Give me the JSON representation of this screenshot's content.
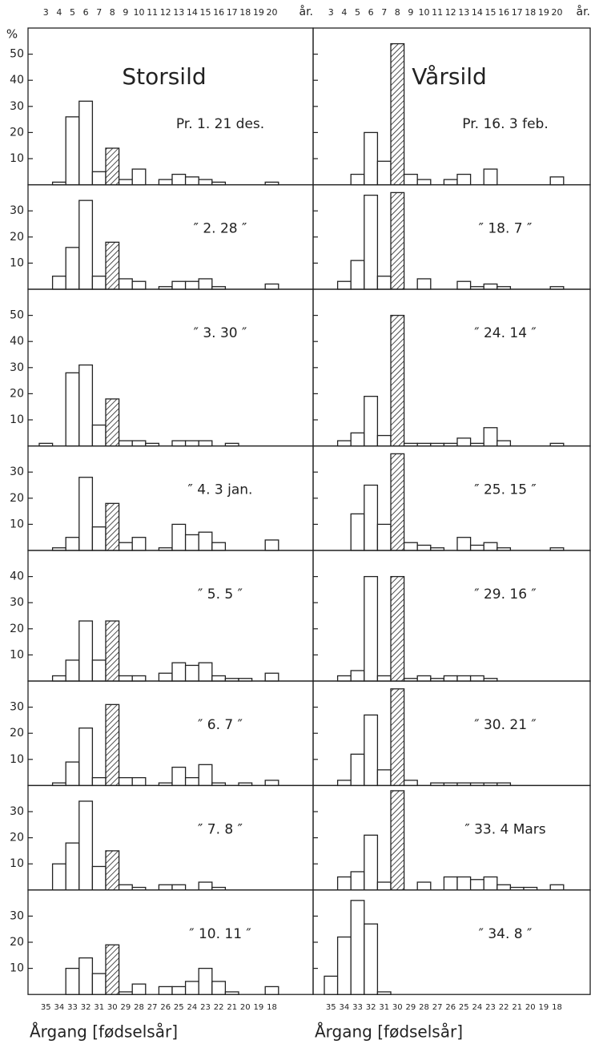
{
  "chart_data": [
    {
      "type": "bar",
      "title": "Storsild",
      "ylabel": "%",
      "tick_labels": true,
      "hatched": "8",
      "color": "#ffffff",
      "edge_color": "#222222",
      "categories": [
        "3",
        "4",
        "5",
        "6",
        "7",
        "8",
        "9",
        "10",
        "11",
        "12",
        "13",
        "14",
        "15",
        "16",
        "17",
        "18",
        "19",
        "20"
      ],
      "age_unit": "år.",
      "year_classes": [
        "35",
        "34",
        "33",
        "32",
        "31",
        "30",
        "29",
        "28",
        "27",
        "26",
        "25",
        "24",
        "23",
        "22",
        "21",
        "20",
        "19",
        "18"
      ],
      "xlabel": "Årgang [fødselsår]",
      "panels": [
        {
          "annotation": "Pr. 1.   21 des.",
          "ylim": [
            0,
            60
          ],
          "yticks": [
            10,
            20,
            30,
            40,
            50
          ],
          "values": [
            0,
            1,
            26,
            32,
            5,
            14,
            2,
            6,
            0,
            2,
            4,
            3,
            2,
            1,
            0,
            0,
            0,
            1
          ]
        },
        {
          "annotation": "″   2.   28   ″",
          "ylim": [
            0,
            40
          ],
          "yticks": [
            10,
            20,
            30
          ],
          "values": [
            0,
            5,
            16,
            34,
            5,
            18,
            4,
            3,
            0,
            1,
            3,
            3,
            4,
            1,
            0,
            0,
            0,
            2
          ]
        },
        {
          "annotation": "″   3.   30   ″",
          "ylim": [
            0,
            60
          ],
          "yticks": [
            10,
            20,
            30,
            40,
            50
          ],
          "values": [
            1,
            0,
            28,
            31,
            8,
            18,
            2,
            2,
            1,
            0,
            2,
            2,
            2,
            0,
            1,
            0,
            0,
            0
          ]
        },
        {
          "annotation": "″   4.   3 jan.",
          "ylim": [
            0,
            40
          ],
          "yticks": [
            10,
            20,
            30
          ],
          "values": [
            0,
            1,
            5,
            28,
            9,
            18,
            3,
            5,
            0,
            1,
            10,
            6,
            7,
            3,
            0,
            0,
            0,
            4
          ]
        },
        {
          "annotation": "″   5.   5   ″",
          "ylim": [
            0,
            50
          ],
          "yticks": [
            10,
            20,
            30,
            40
          ],
          "values": [
            0,
            2,
            8,
            23,
            8,
            23,
            2,
            2,
            0,
            3,
            7,
            6,
            7,
            2,
            1,
            1,
            0,
            3
          ]
        },
        {
          "annotation": "″   6.   7   ″",
          "ylim": [
            0,
            40
          ],
          "yticks": [
            10,
            20,
            30
          ],
          "values": [
            0,
            1,
            9,
            22,
            3,
            31,
            3,
            3,
            0,
            1,
            7,
            3,
            8,
            1,
            0,
            1,
            0,
            2
          ]
        },
        {
          "annotation": "″   7.   8   ″",
          "ylim": [
            0,
            40
          ],
          "yticks": [
            10,
            20,
            30
          ],
          "values": [
            0,
            10,
            18,
            34,
            9,
            15,
            2,
            1,
            0,
            2,
            2,
            0,
            3,
            1,
            0,
            0,
            0,
            0
          ]
        },
        {
          "annotation": "″   10.   11   ″",
          "ylim": [
            0,
            40
          ],
          "yticks": [
            10,
            20,
            30
          ],
          "values": [
            0,
            0,
            10,
            14,
            8,
            19,
            1,
            4,
            0,
            3,
            3,
            5,
            10,
            5,
            1,
            0,
            0,
            3
          ]
        }
      ]
    },
    {
      "type": "bar",
      "title": "Vårsild",
      "tick_labels": false,
      "hatched": "8",
      "color": "#ffffff",
      "edge_color": "#222222",
      "categories": [
        "3",
        "4",
        "5",
        "6",
        "7",
        "8",
        "9",
        "10",
        "11",
        "12",
        "13",
        "14",
        "15",
        "16",
        "17",
        "18",
        "19",
        "20"
      ],
      "age_unit": "år.",
      "year_classes": [
        "35",
        "34",
        "33",
        "32",
        "31",
        "30",
        "29",
        "28",
        "27",
        "26",
        "25",
        "24",
        "23",
        "22",
        "21",
        "20",
        "19",
        "18"
      ],
      "xlabel": "Årgang [fødselsår]",
      "panels": [
        {
          "annotation": "Pr. 16.   3 feb.",
          "ylim": [
            0,
            60
          ],
          "yticks": [
            10,
            20,
            30,
            40,
            50
          ],
          "values": [
            0,
            0,
            4,
            20,
            9,
            54,
            4,
            2,
            0,
            2,
            4,
            0,
            6,
            0,
            0,
            0,
            0,
            3
          ]
        },
        {
          "annotation": "″   18.   7   ″",
          "ylim": [
            0,
            40
          ],
          "yticks": [
            10,
            20,
            30
          ],
          "values": [
            0,
            3,
            11,
            36,
            5,
            37,
            0,
            4,
            0,
            0,
            3,
            1,
            2,
            1,
            0,
            0,
            0,
            1
          ]
        },
        {
          "annotation": "″   24.   14   ″",
          "ylim": [
            0,
            60
          ],
          "yticks": [
            10,
            20,
            30,
            40,
            50
          ],
          "values": [
            0,
            2,
            5,
            19,
            4,
            50,
            1,
            1,
            1,
            1,
            3,
            1,
            7,
            2,
            0,
            0,
            0,
            1
          ]
        },
        {
          "annotation": "″   25.   15   ″",
          "ylim": [
            0,
            40
          ],
          "yticks": [
            10,
            20,
            30
          ],
          "values": [
            0,
            0,
            14,
            25,
            10,
            37,
            3,
            2,
            1,
            0,
            5,
            2,
            3,
            1,
            0,
            0,
            0,
            1
          ]
        },
        {
          "annotation": "″   29.   16   ″",
          "ylim": [
            0,
            50
          ],
          "yticks": [
            10,
            20,
            30,
            40
          ],
          "values": [
            0,
            2,
            4,
            40,
            2,
            40,
            1,
            2,
            1,
            2,
            2,
            2,
            1,
            0,
            0,
            0,
            0,
            0
          ]
        },
        {
          "annotation": "″   30.   21   ″",
          "ylim": [
            0,
            40
          ],
          "yticks": [
            10,
            20,
            30
          ],
          "values": [
            0,
            2,
            12,
            27,
            6,
            37,
            2,
            0,
            1,
            1,
            1,
            1,
            1,
            1,
            0,
            0,
            0,
            0
          ]
        },
        {
          "annotation": "″   33.   4 Mars",
          "ylim": [
            0,
            40
          ],
          "yticks": [
            10,
            20,
            30
          ],
          "values": [
            0,
            5,
            7,
            21,
            3,
            38,
            0,
            3,
            0,
            5,
            5,
            4,
            5,
            2,
            1,
            1,
            0,
            2
          ]
        },
        {
          "annotation": "″   34.   8   ″",
          "ylim": [
            0,
            40
          ],
          "yticks": [
            10,
            20,
            30
          ],
          "values": [
            7,
            22,
            36,
            27,
            1,
            0,
            0,
            0,
            0,
            0,
            0,
            0,
            0,
            0,
            0,
            0,
            0,
            0
          ]
        }
      ]
    }
  ]
}
